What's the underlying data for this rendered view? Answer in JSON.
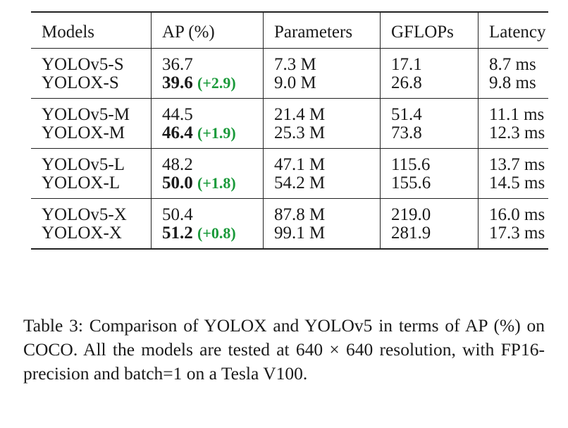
{
  "table": {
    "headers": [
      "Models",
      "AP (%)",
      "Parameters",
      "GFLOPs",
      "Latency"
    ],
    "groups": [
      [
        {
          "model": "YOLOv5-S",
          "ap": "36.7",
          "gain": "",
          "params": "7.3 M",
          "gflops": "17.1",
          "latency": "8.7 ms"
        },
        {
          "model": "YOLOX-S",
          "ap": "39.6",
          "gain": "(+2.9)",
          "params": "9.0 M",
          "gflops": "26.8",
          "latency": "9.8 ms"
        }
      ],
      [
        {
          "model": "YOLOv5-M",
          "ap": "44.5",
          "gain": "",
          "params": "21.4 M",
          "gflops": "51.4",
          "latency": "11.1 ms"
        },
        {
          "model": "YOLOX-M",
          "ap": "46.4",
          "gain": "(+1.9)",
          "params": "25.3 M",
          "gflops": "73.8",
          "latency": "12.3 ms"
        }
      ],
      [
        {
          "model": "YOLOv5-L",
          "ap": "48.2",
          "gain": "",
          "params": "47.1 M",
          "gflops": "115.6",
          "latency": "13.7 ms"
        },
        {
          "model": "YOLOX-L",
          "ap": "50.0",
          "gain": "(+1.8)",
          "params": "54.2 M",
          "gflops": "155.6",
          "latency": "14.5 ms"
        }
      ],
      [
        {
          "model": "YOLOv5-X",
          "ap": "50.4",
          "gain": "",
          "params": "87.8 M",
          "gflops": "219.0",
          "latency": "16.0 ms"
        },
        {
          "model": "YOLOX-X",
          "ap": "51.2",
          "gain": "(+0.8)",
          "params": "99.1 M",
          "gflops": "281.9",
          "latency": "17.3 ms"
        }
      ]
    ]
  },
  "caption": {
    "label": "Table 3:",
    "text": "Comparison of YOLOX and YOLOv5 in terms of AP (%) on COCO. All the models are tested at 640 × 640 resolution, with FP16-precision and batch=1 on a Tesla V100."
  }
}
